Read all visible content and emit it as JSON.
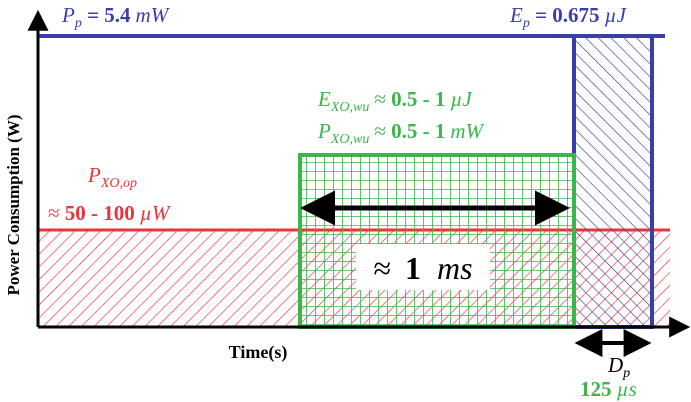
{
  "colors": {
    "blue": "#3a3fa8",
    "red": "#e8343a",
    "green": "#3cb54a",
    "black": "#000000"
  },
  "y_axis": {
    "label": "Power Consumption (W)"
  },
  "x_axis": {
    "label": "Time(s)"
  },
  "pulse_power": {
    "var": "P",
    "sub": "p",
    "eq": " = ",
    "value": "5.4",
    "unit": "mW"
  },
  "pulse_energy": {
    "var": "E",
    "sub": "p",
    "eq": " = ",
    "value": "0.675",
    "unit": "µJ"
  },
  "xo_wakeup_energy": {
    "var": "E",
    "sub": "XO,wu",
    "approx": "≈ ",
    "value": "0.5 - 1",
    "unit": "µJ"
  },
  "xo_wakeup_power": {
    "var": "P",
    "sub": "XO,wu",
    "approx": "≈ ",
    "value": "0.5 - 1",
    "unit": "mW"
  },
  "xo_operating_power": {
    "var": "P",
    "sub": "XO,op",
    "approx": "≈ ",
    "value": "50 - 100",
    "unit": "µW"
  },
  "wakeup_duration": {
    "approx": "≈",
    "value": "1",
    "unit": "ms"
  },
  "pulse_duration": {
    "var": "D",
    "sub": "p",
    "value": "125",
    "unit": "µs"
  }
}
